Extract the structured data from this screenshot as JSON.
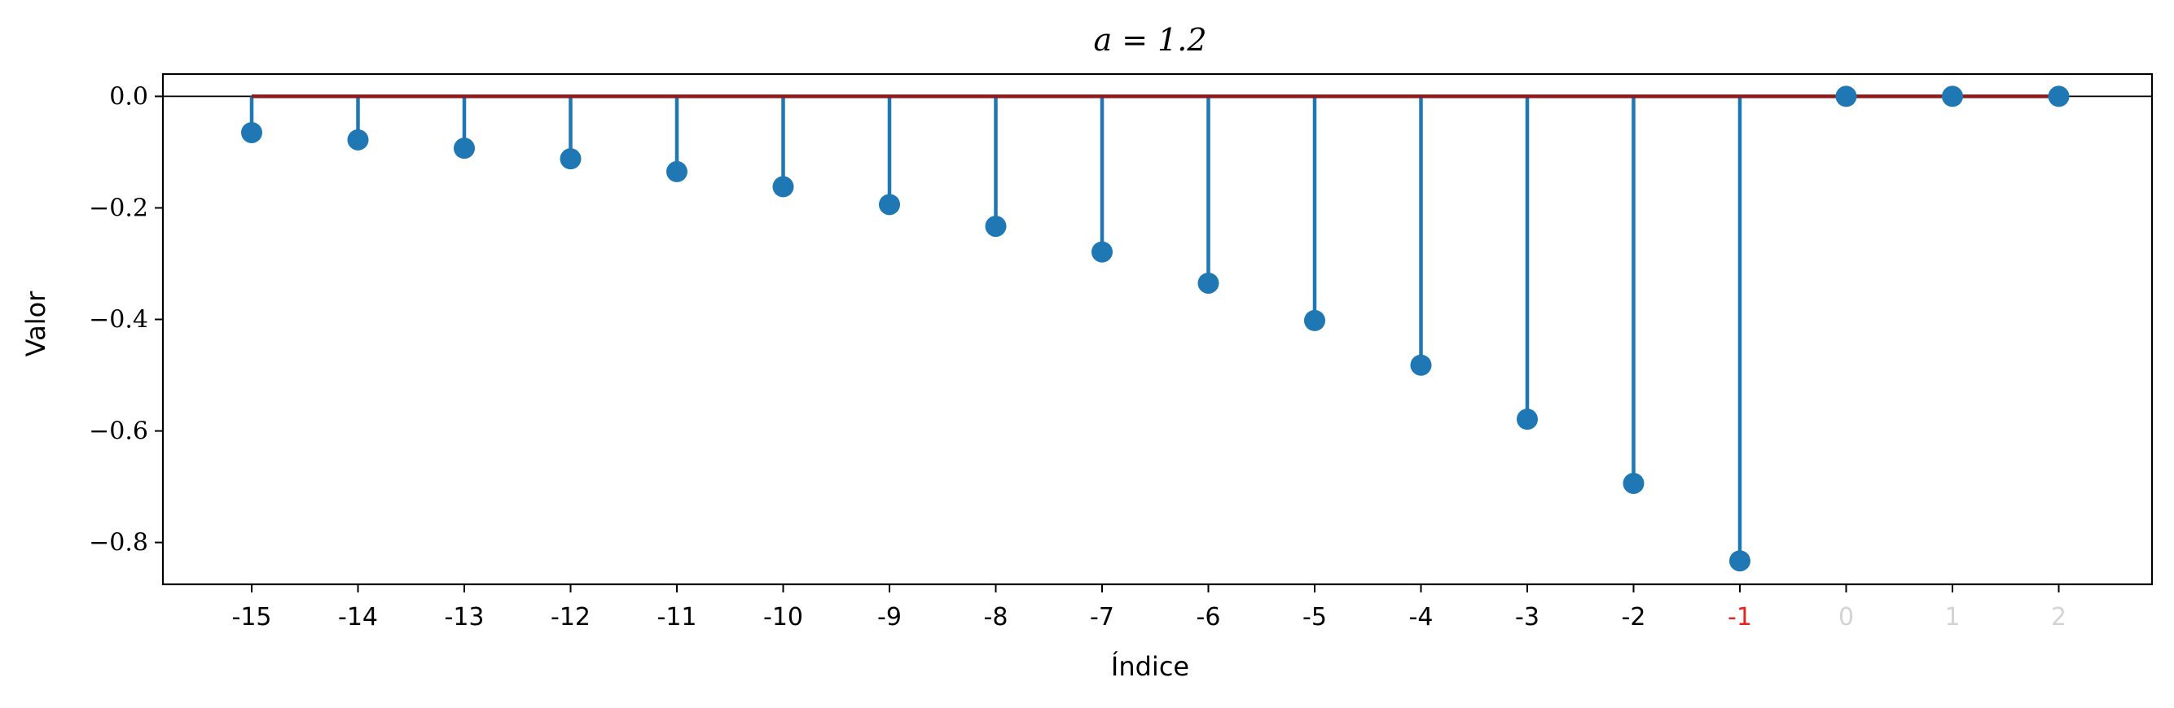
{
  "chart_data": {
    "type": "stem",
    "title": "a = 1.2",
    "xlabel": "Índice",
    "ylabel": "Valor",
    "categories": [
      "-15",
      "-14",
      "-13",
      "-12",
      "-11",
      "-10",
      "-9",
      "-8",
      "-7",
      "-6",
      "-5",
      "-4",
      "-3",
      "-2",
      "-1",
      "0",
      "1",
      "2"
    ],
    "values": [
      -0.065,
      -0.078,
      -0.093,
      -0.112,
      -0.135,
      -0.162,
      -0.194,
      -0.233,
      -0.279,
      -0.335,
      -0.402,
      -0.482,
      -0.579,
      -0.694,
      -0.833,
      0.0,
      0.0,
      0.0
    ],
    "ylim": [
      -0.875,
      0.04
    ],
    "yticks": [
      0.0,
      -0.2,
      -0.4,
      -0.6,
      -0.8
    ],
    "ytick_labels": [
      "0.0",
      "−0.2",
      "−0.4",
      "−0.6",
      "−0.8"
    ],
    "grid": false,
    "highlight_tick": "-1",
    "colors": {
      "stem": "#1f77b4",
      "baseline": "#8b1a1a",
      "zero_line": "#000000",
      "highlight_tick": "#e8231f",
      "faded_tick": "#d3d3d3",
      "tick_text": "#000000"
    }
  }
}
